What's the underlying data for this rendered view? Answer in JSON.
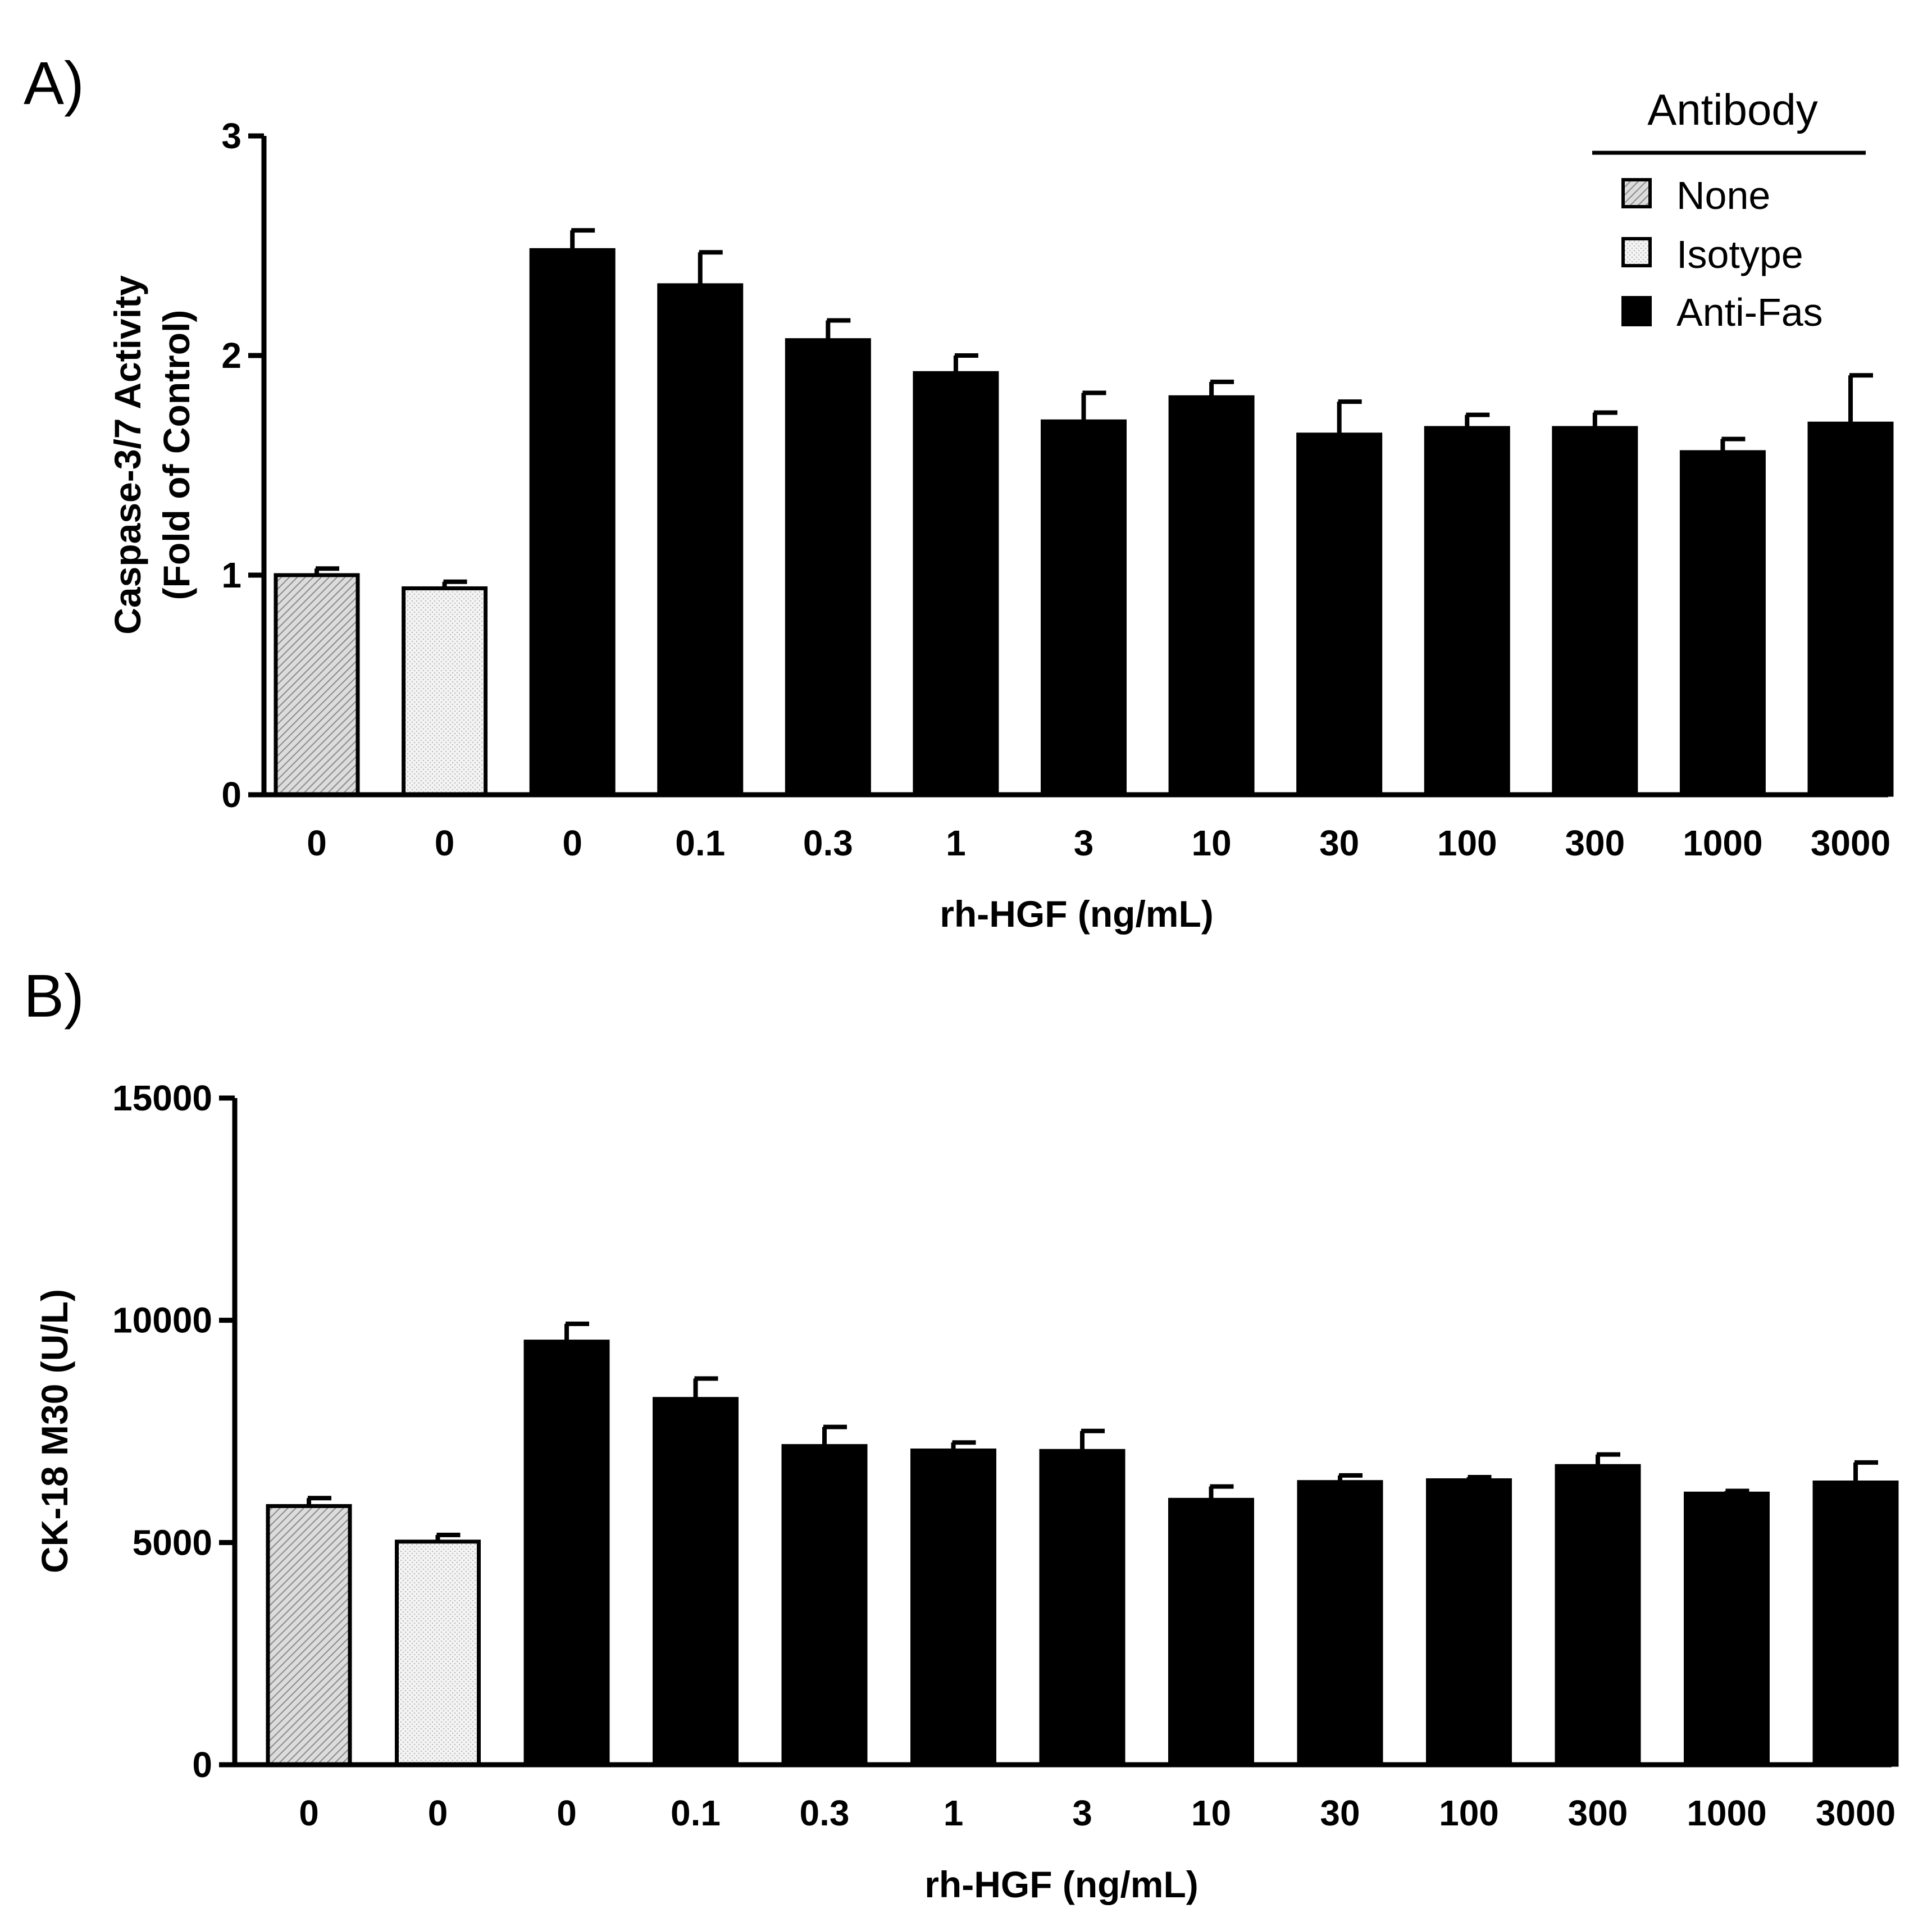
{
  "figure": {
    "panel_a_label": "A)",
    "panel_b_label": "B)"
  },
  "legend": {
    "title": "Antibody",
    "entries": [
      {
        "label": "None",
        "pattern": "hatch"
      },
      {
        "label": "Isotype",
        "pattern": "dots"
      },
      {
        "label": "Anti-Fas",
        "pattern": "solid"
      }
    ]
  },
  "colors": {
    "ink": "#000000",
    "background": "#ffffff"
  },
  "chart_data": [
    {
      "type": "bar",
      "panel": "A)",
      "xlabel": "rh-HGF (ng/mL)",
      "ylabel_line1": "Caspase-3/7 Activity",
      "ylabel_line2": "(Fold of Control)",
      "ylim": [
        0,
        3
      ],
      "yticks": [
        0,
        1,
        2,
        3
      ],
      "categories": [
        "0",
        "0",
        "0",
        "0.1",
        "0.3",
        "1",
        "3",
        "10",
        "30",
        "100",
        "300",
        "1000",
        "3000"
      ],
      "groups": [
        "None",
        "Isotype",
        "Anti-Fas",
        "Anti-Fas",
        "Anti-Fas",
        "Anti-Fas",
        "Anti-Fas",
        "Anti-Fas",
        "Anti-Fas",
        "Anti-Fas",
        "Anti-Fas",
        "Anti-Fas",
        "Anti-Fas"
      ],
      "values": [
        1.0,
        0.94,
        2.48,
        2.32,
        2.07,
        1.92,
        1.7,
        1.81,
        1.64,
        1.67,
        1.67,
        1.56,
        1.69
      ],
      "errors": [
        0.03,
        0.03,
        0.09,
        0.15,
        0.09,
        0.08,
        0.13,
        0.07,
        0.15,
        0.06,
        0.07,
        0.06,
        0.22
      ]
    },
    {
      "type": "bar",
      "panel": "B)",
      "xlabel": "rh-HGF (ng/mL)",
      "ylabel": "CK-18 M30 (U/L)",
      "ylim": [
        0,
        15000
      ],
      "yticks": [
        0,
        5000,
        10000,
        15000
      ],
      "categories": [
        "0",
        "0",
        "0",
        "0.1",
        "0.3",
        "1",
        "3",
        "10",
        "30",
        "100",
        "300",
        "1000",
        "3000"
      ],
      "groups": [
        "None",
        "Isotype",
        "Anti-Fas",
        "Anti-Fas",
        "Anti-Fas",
        "Anti-Fas",
        "Anti-Fas",
        "Anti-Fas",
        "Anti-Fas",
        "Anti-Fas",
        "Anti-Fas",
        "Anti-Fas",
        "Anti-Fas"
      ],
      "values": [
        5820,
        5020,
        9520,
        8230,
        7170,
        7070,
        7060,
        5960,
        6360,
        6400,
        6720,
        6100,
        6350
      ],
      "errors": [
        180,
        150,
        400,
        460,
        430,
        180,
        450,
        300,
        150,
        70,
        260,
        60,
        450
      ]
    }
  ]
}
